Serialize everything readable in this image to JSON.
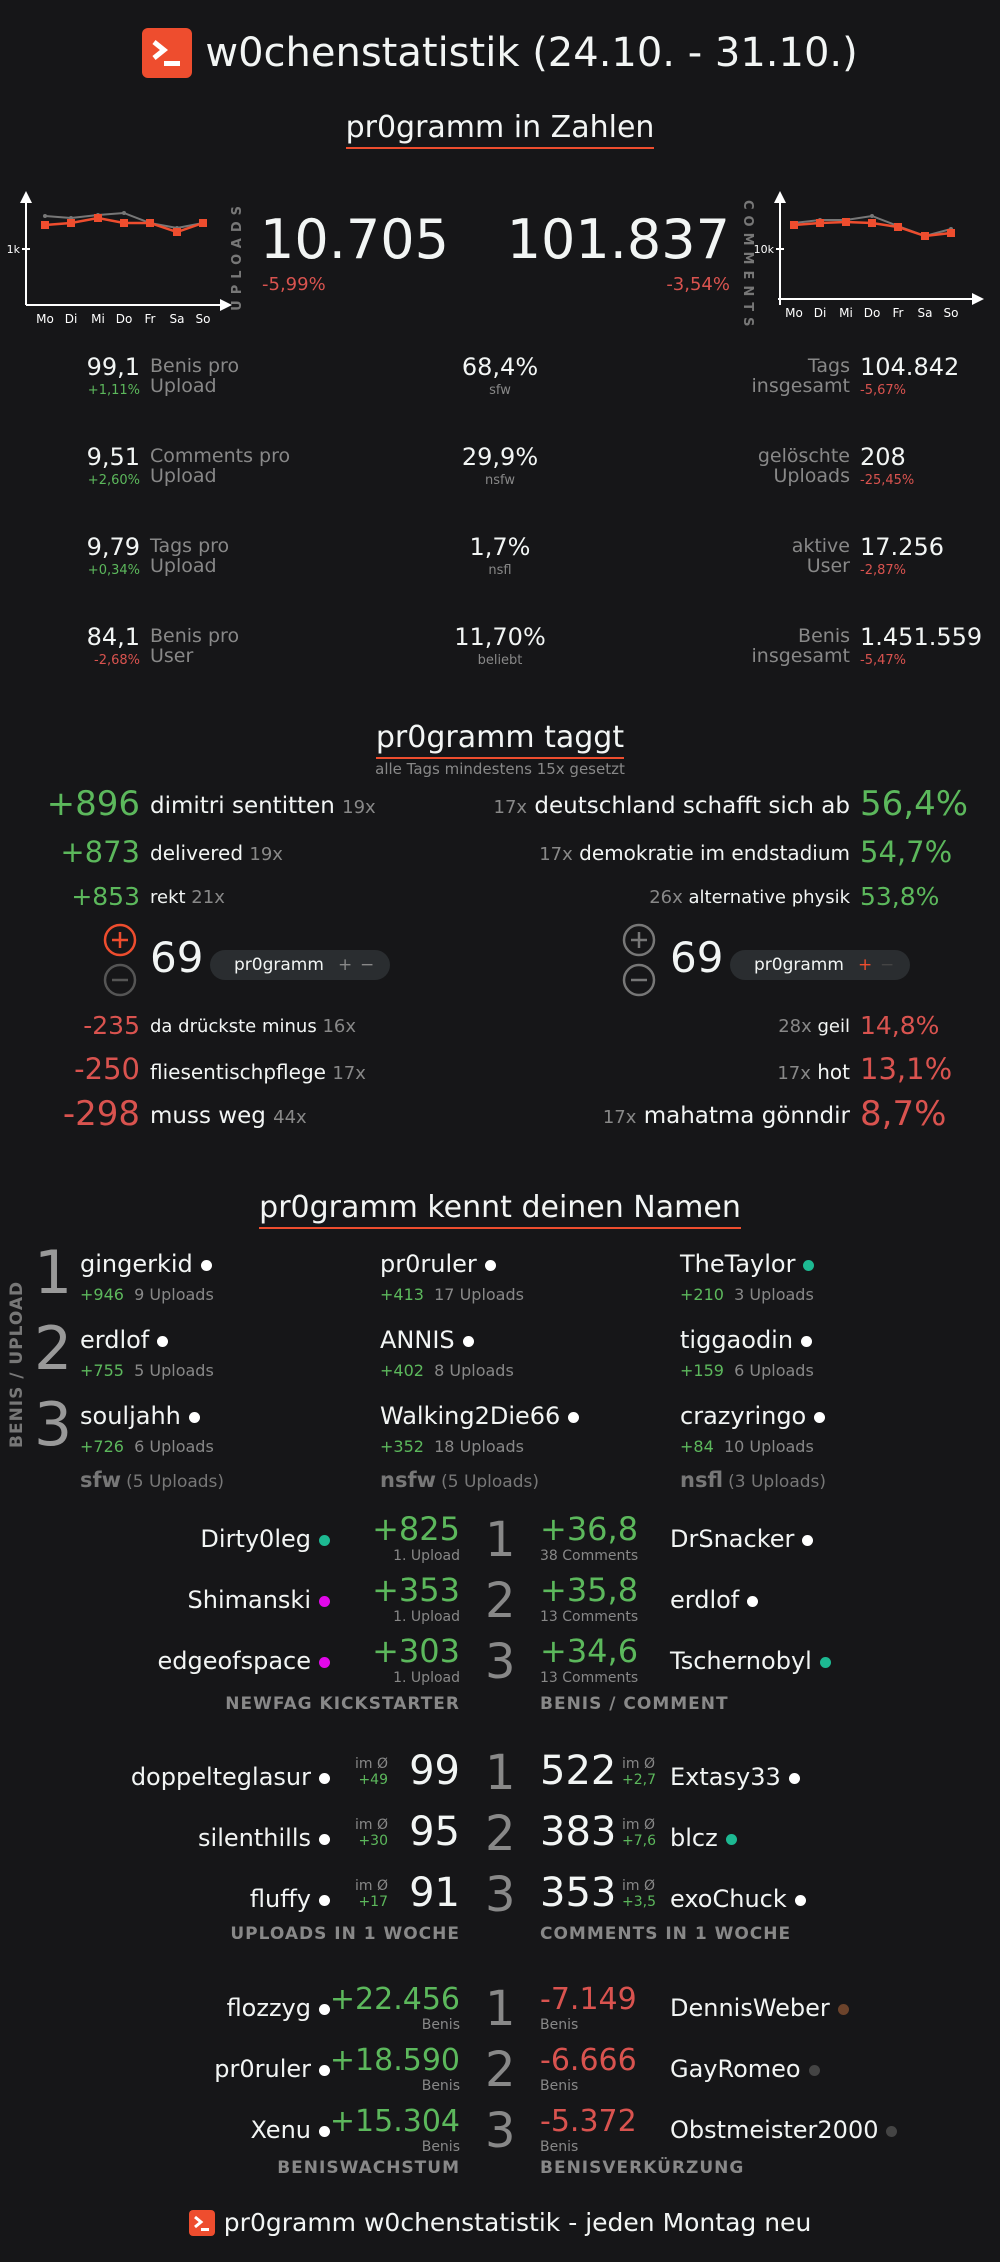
{
  "header": {
    "title": "w0chenstatistik (24.10. - 31.10.)"
  },
  "zahlen": {
    "title": "pr0gramm in Zahlen",
    "days": [
      "Mo",
      "Di",
      "Mi",
      "Do",
      "Fr",
      "Sa",
      "So"
    ],
    "uploads": {
      "label": "UPLOADS",
      "value": "10.705",
      "change": "-5,99%",
      "axis": "1k"
    },
    "comments": {
      "label": "COMMENTS",
      "value": "101.837",
      "change": "-3,54%",
      "axis": "10k"
    },
    "left": [
      {
        "value": "99,1",
        "change": "+1,11%",
        "label1": "Benis pro",
        "label2": "Upload",
        "cls": "green"
      },
      {
        "value": "9,51",
        "change": "+2,60%",
        "label1": "Comments pro",
        "label2": "Upload",
        "cls": "green"
      },
      {
        "value": "9,79",
        "change": "+0,34%",
        "label1": "Tags pro",
        "label2": "Upload",
        "cls": "green"
      },
      {
        "value": "84,1",
        "change": "-2,68%",
        "label1": "Benis pro",
        "label2": "User",
        "cls": "red"
      }
    ],
    "middle": [
      {
        "value": "68,4%",
        "label": "sfw"
      },
      {
        "value": "29,9%",
        "label": "nsfw"
      },
      {
        "value": "1,7%",
        "label": "nsfl"
      },
      {
        "value": "11,70%",
        "label": "beliebt"
      }
    ],
    "right": [
      {
        "value": "104.842",
        "change": "-5,67%",
        "label1": "Tags",
        "label2": "insgesamt"
      },
      {
        "value": "208",
        "change": "-25,45%",
        "label1": "gelöschte",
        "label2": "Uploads"
      },
      {
        "value": "17.256",
        "change": "-2,87%",
        "label1": "aktive",
        "label2": "User"
      },
      {
        "value": "1.451.559",
        "change": "-5,47%",
        "label1": "Benis",
        "label2": "insgesamt"
      }
    ]
  },
  "taggt": {
    "title": "pr0gramm taggt",
    "subtitle": "alle Tags mindestens 15x gesetzt",
    "top_left": [
      {
        "score": "+896",
        "tag": "dimitri sentitten",
        "count": "19x"
      },
      {
        "score": "+873",
        "tag": "delivered",
        "count": "19x"
      },
      {
        "score": "+853",
        "tag": "rekt",
        "count": "21x"
      }
    ],
    "top_right": [
      {
        "count": "17x",
        "tag": "deutschland schafft sich ab",
        "pct": "56,4%"
      },
      {
        "count": "17x",
        "tag": "demokratie im endstadium",
        "pct": "54,7%"
      },
      {
        "count": "26x",
        "tag": "alternative physik",
        "pct": "53,8%"
      }
    ],
    "vote_left": {
      "value": "69",
      "pill": "pr0gramm",
      "plus": "+",
      "minus": "−"
    },
    "vote_right": {
      "value": "69",
      "pill": "pr0gramm",
      "plus": "+",
      "minus": "−"
    },
    "bottom_left": [
      {
        "score": "-235",
        "tag": "da drückste minus",
        "count": "16x"
      },
      {
        "score": "-250",
        "tag": "fliesentischpflege",
        "count": "17x"
      },
      {
        "score": "-298",
        "tag": "muss weg",
        "count": "44x"
      }
    ],
    "bottom_right": [
      {
        "count": "28x",
        "tag": "geil",
        "pct": "14,8%"
      },
      {
        "count": "17x",
        "tag": "hot",
        "pct": "13,1%"
      },
      {
        "count": "17x",
        "tag": "mahatma gönndir",
        "pct": "8,7%"
      }
    ]
  },
  "namen": {
    "title": "pr0gramm kennt deinen Namen",
    "side_label": "BENIS / UPLOAD",
    "ranks": [
      "1",
      "2",
      "3"
    ],
    "columns": [
      {
        "footer_bold": "sfw",
        "footer_rest": "(5 Uploads)",
        "users": [
          {
            "name": "gingerkid",
            "benis": "+946",
            "uploads": "9 Uploads",
            "color": "#ffffff"
          },
          {
            "name": "erdlof",
            "benis": "+755",
            "uploads": "5 Uploads",
            "color": "#ffffff"
          },
          {
            "name": "souljahh",
            "benis": "+726",
            "uploads": "6 Uploads",
            "color": "#ffffff"
          }
        ]
      },
      {
        "footer_bold": "nsfw",
        "footer_rest": "(5 Uploads)",
        "users": [
          {
            "name": "pr0ruler",
            "benis": "+413",
            "uploads": "17 Uploads",
            "color": "#ffffff"
          },
          {
            "name": "ANNIS",
            "benis": "+402",
            "uploads": "8 Uploads",
            "color": "#ffffff"
          },
          {
            "name": "Walking2Die66",
            "benis": "+352",
            "uploads": "18 Uploads",
            "color": "#ffffff"
          }
        ]
      },
      {
        "footer_bold": "nsfl",
        "footer_rest": "(3 Uploads)",
        "users": [
          {
            "name": "TheTaylor",
            "benis": "+210",
            "uploads": "3 Uploads",
            "color": "#1db992"
          },
          {
            "name": "tiggaodin",
            "benis": "+159",
            "uploads": "6 Uploads",
            "color": "#ffffff"
          },
          {
            "name": "crazyringo",
            "benis": "+84",
            "uploads": "10 Uploads",
            "color": "#ffffff"
          }
        ]
      }
    ]
  },
  "newfag": {
    "caption": "NEWFAG KICKSTARTER",
    "rows": [
      {
        "name": "Dirty0leg",
        "value": "+825",
        "sub": "1. Upload",
        "color": "#1db992"
      },
      {
        "name": "Shimanski",
        "value": "+353",
        "sub": "1. Upload",
        "color": "#e108e9"
      },
      {
        "name": "edgeofspace",
        "value": "+303",
        "sub": "1. Upload",
        "color": "#e108e9"
      }
    ]
  },
  "benis_comment": {
    "caption": "BENIS / COMMENT",
    "rows": [
      {
        "name": "DrSnacker",
        "value": "+36,8",
        "sub": "38 Comments",
        "color": "#ffffff"
      },
      {
        "name": "erdlof",
        "value": "+35,8",
        "sub": "13 Comments",
        "color": "#ffffff"
      },
      {
        "name": "Tschernobyl",
        "value": "+34,6",
        "sub": "13 Comments",
        "color": "#1db992"
      }
    ]
  },
  "uploads_woche": {
    "caption": "UPLOADS IN 1 WOCHE",
    "im": "im Ø",
    "rows": [
      {
        "name": "doppelteglasur",
        "avg": "+49",
        "value": "99",
        "color": "#ffffff"
      },
      {
        "name": "silenthills",
        "avg": "+30",
        "value": "95",
        "color": "#ffffff"
      },
      {
        "name": "fluffy",
        "avg": "+17",
        "value": "91",
        "color": "#ffffff"
      }
    ]
  },
  "comments_woche": {
    "caption": "COMMENTS IN 1 WOCHE",
    "im": "im Ø",
    "rows": [
      {
        "name": "Extasy33",
        "avg": "+2,7",
        "value": "522",
        "color": "#ffffff"
      },
      {
        "name": "blcz",
        "avg": "+7,6",
        "value": "383",
        "color": "#1db992"
      },
      {
        "name": "exoChuck",
        "avg": "+3,5",
        "value": "353",
        "color": "#ffffff"
      }
    ]
  },
  "wachstum": {
    "caption": "BENISWACHSTUM",
    "unit": "Benis",
    "rows": [
      {
        "name": "flozzyg",
        "value": "+22.456",
        "color": "#ffffff"
      },
      {
        "name": "pr0ruler",
        "value": "+18.590",
        "color": "#ffffff"
      },
      {
        "name": "Xenu",
        "value": "+15.304",
        "color": "#ffffff"
      }
    ]
  },
  "verkuerzung": {
    "caption": "BENISVERKÜRZUNG",
    "unit": "Benis",
    "rows": [
      {
        "name": "DennisWeber",
        "value": "-7.149",
        "color": "#6c432b"
      },
      {
        "name": "GayRomeo",
        "value": "-6.666",
        "color": "#444444"
      },
      {
        "name": "Obstmeister2000",
        "value": "-5.372",
        "color": "#444444"
      }
    ]
  },
  "footer": {
    "text": "pr0gramm w0chenstatistik - jeden Montag neu"
  },
  "colors": {
    "accent": "#ee4d2e",
    "background": "#161618",
    "green": "#5cb85c",
    "red": "#d9534f"
  }
}
